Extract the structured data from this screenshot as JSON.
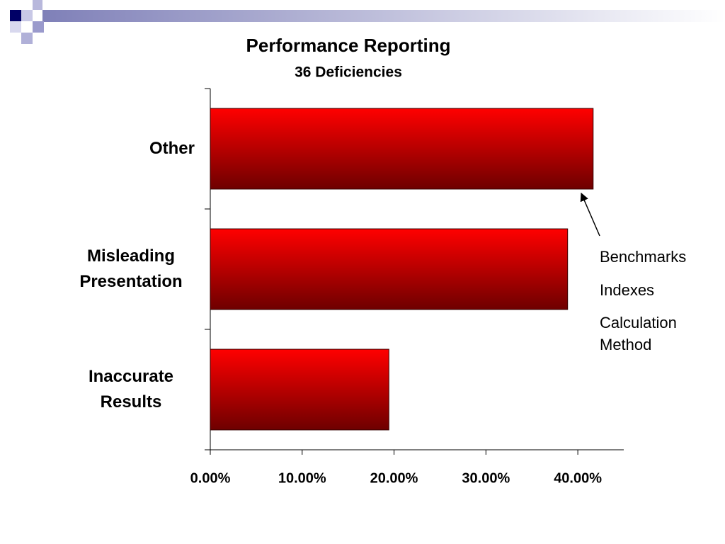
{
  "chart_data": {
    "type": "barh",
    "title": "Performance Reporting",
    "subtitle": "36 Deficiencies",
    "categories": [
      "Other",
      "Misleading Presentation",
      "Inaccurate Results"
    ],
    "values": [
      41.67,
      38.89,
      19.44
    ],
    "color": "#ff0000",
    "xlim": [
      0,
      45
    ],
    "xticks": [
      {
        "value": 0,
        "label": "0.00%"
      },
      {
        "value": 10,
        "label": "10.00%"
      },
      {
        "value": 20,
        "label": "20.00%"
      },
      {
        "value": 30,
        "label": "30.00%"
      },
      {
        "value": 40,
        "label": "40.00%"
      }
    ],
    "grid": false,
    "annotations": [
      "Benchmarks",
      "Indexes",
      "Calculation Method"
    ]
  }
}
